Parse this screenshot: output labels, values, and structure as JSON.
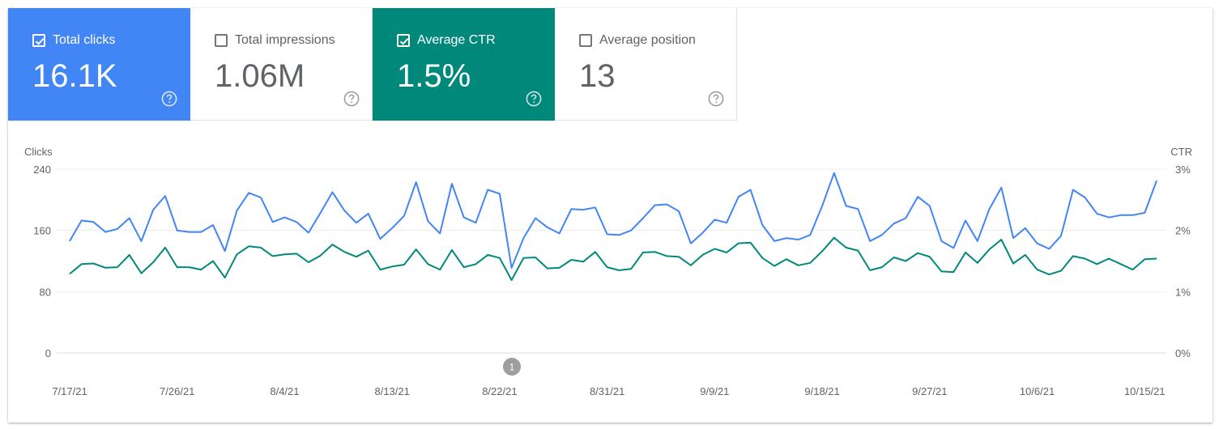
{
  "metrics": [
    {
      "label": "Total clicks",
      "value": "16.1K",
      "checked": true,
      "color": "#4285f4",
      "icon": "help-icon"
    },
    {
      "label": "Total impressions",
      "value": "1.06M",
      "checked": false,
      "color": "#5f6368",
      "icon": "help-icon"
    },
    {
      "label": "Average CTR",
      "value": "1.5%",
      "checked": true,
      "color": "#00897b",
      "icon": "help-icon"
    },
    {
      "label": "Average position",
      "value": "13",
      "checked": false,
      "color": "#5f6368",
      "icon": "help-icon"
    }
  ],
  "annotation": {
    "label": "1"
  },
  "chart_data": {
    "type": "line",
    "left_axis": {
      "label": "Clicks",
      "ticks": [
        "240",
        "160",
        "80",
        "0"
      ],
      "range": [
        0,
        240
      ]
    },
    "right_axis": {
      "label": "CTR",
      "ticks": [
        "3%",
        "2%",
        "1%",
        "0%"
      ],
      "range": [
        0,
        3
      ]
    },
    "x_tick_labels": [
      "7/17/21",
      "7/26/21",
      "8/4/21",
      "8/13/21",
      "8/22/21",
      "8/31/21",
      "9/9/21",
      "9/18/21",
      "9/27/21",
      "10/6/21",
      "10/15/21"
    ],
    "x": [
      "7/17/21",
      "7/18/21",
      "7/19/21",
      "7/20/21",
      "7/21/21",
      "7/22/21",
      "7/23/21",
      "7/24/21",
      "7/25/21",
      "7/26/21",
      "7/27/21",
      "7/28/21",
      "7/29/21",
      "7/30/21",
      "7/31/21",
      "8/1/21",
      "8/2/21",
      "8/3/21",
      "8/4/21",
      "8/5/21",
      "8/6/21",
      "8/7/21",
      "8/8/21",
      "8/9/21",
      "8/10/21",
      "8/11/21",
      "8/12/21",
      "8/13/21",
      "8/14/21",
      "8/15/21",
      "8/16/21",
      "8/17/21",
      "8/18/21",
      "8/19/21",
      "8/20/21",
      "8/21/21",
      "8/22/21",
      "8/23/21",
      "8/24/21",
      "8/25/21",
      "8/26/21",
      "8/27/21",
      "8/28/21",
      "8/29/21",
      "8/30/21",
      "8/31/21",
      "9/1/21",
      "9/2/21",
      "9/3/21",
      "9/4/21",
      "9/5/21",
      "9/6/21",
      "9/7/21",
      "9/8/21",
      "9/9/21",
      "9/10/21",
      "9/11/21",
      "9/12/21",
      "9/13/21",
      "9/14/21",
      "9/15/21",
      "9/16/21",
      "9/17/21",
      "9/18/21",
      "9/19/21",
      "9/20/21",
      "9/21/21",
      "9/22/21",
      "9/23/21",
      "9/24/21",
      "9/25/21",
      "9/26/21",
      "9/27/21",
      "9/28/21",
      "9/29/21",
      "9/30/21",
      "10/1/21",
      "10/2/21",
      "10/3/21",
      "10/4/21",
      "10/5/21",
      "10/6/21",
      "10/7/21",
      "10/8/21",
      "10/9/21",
      "10/10/21",
      "10/11/21",
      "10/12/21",
      "10/13/21",
      "10/14/21",
      "10/15/21",
      "10/16/21"
    ],
    "series": [
      {
        "name": "Clicks",
        "axis": "left",
        "color": "#4285f4",
        "values": [
          146,
          173,
          171,
          158,
          162,
          176,
          146,
          187,
          205,
          160,
          158,
          158,
          167,
          133,
          186,
          209,
          203,
          171,
          177,
          171,
          157,
          183,
          210,
          186,
          170,
          182,
          149,
          163,
          179,
          223,
          172,
          156,
          221,
          177,
          170,
          213,
          208,
          111,
          150,
          176,
          164,
          156,
          188,
          187,
          190,
          155,
          154,
          160,
          176,
          193,
          194,
          185,
          143,
          157,
          174,
          170,
          204,
          213,
          167,
          146,
          150,
          148,
          154,
          192,
          235,
          192,
          188,
          146,
          154,
          169,
          176,
          204,
          192,
          146,
          137,
          173,
          146,
          188,
          216,
          150,
          163,
          143,
          136,
          153,
          213,
          203,
          182,
          177,
          180,
          180,
          183,
          225
        ]
      },
      {
        "name": "Average CTR",
        "axis": "right",
        "color": "#00897b",
        "values": [
          1.29,
          1.45,
          1.46,
          1.39,
          1.4,
          1.6,
          1.3,
          1.48,
          1.72,
          1.4,
          1.4,
          1.36,
          1.5,
          1.23,
          1.61,
          1.74,
          1.72,
          1.58,
          1.61,
          1.62,
          1.48,
          1.59,
          1.77,
          1.65,
          1.57,
          1.67,
          1.36,
          1.41,
          1.44,
          1.69,
          1.45,
          1.36,
          1.68,
          1.4,
          1.45,
          1.6,
          1.55,
          1.19,
          1.55,
          1.56,
          1.38,
          1.39,
          1.52,
          1.49,
          1.65,
          1.4,
          1.35,
          1.37,
          1.64,
          1.65,
          1.58,
          1.57,
          1.43,
          1.6,
          1.7,
          1.64,
          1.79,
          1.8,
          1.55,
          1.42,
          1.53,
          1.43,
          1.47,
          1.66,
          1.88,
          1.72,
          1.67,
          1.35,
          1.4,
          1.56,
          1.5,
          1.63,
          1.57,
          1.33,
          1.32,
          1.64,
          1.47,
          1.69,
          1.85,
          1.46,
          1.6,
          1.36,
          1.28,
          1.34,
          1.58,
          1.54,
          1.45,
          1.54,
          1.45,
          1.36,
          1.53,
          1.54
        ]
      }
    ]
  }
}
